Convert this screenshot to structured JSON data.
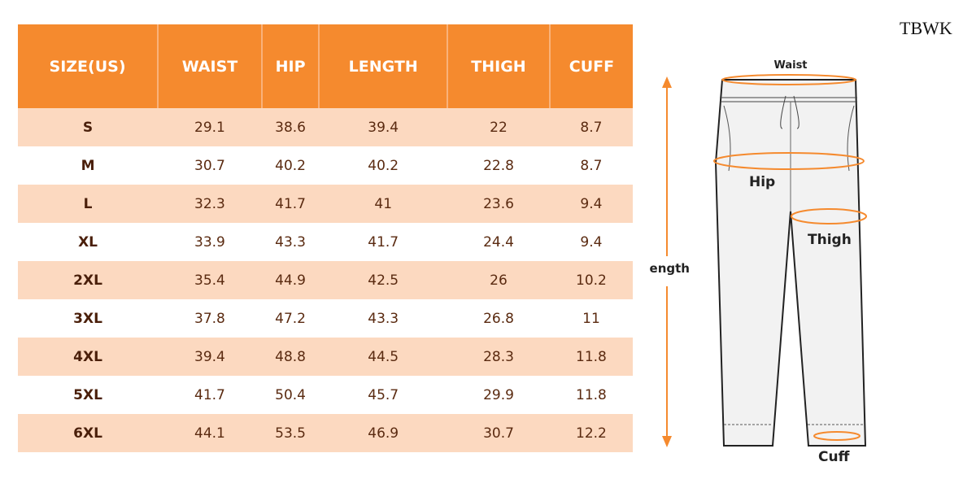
{
  "brand": "TBWK",
  "table": {
    "header": [
      "SIZE(US)",
      "WAIST",
      "HIP",
      "LENGTH",
      "THIGH",
      "CUFF"
    ],
    "rows": [
      [
        "S",
        "29.1",
        "38.6",
        "39.4",
        "22",
        "8.7"
      ],
      [
        "M",
        "30.7",
        "40.2",
        "40.2",
        "22.8",
        "8.7"
      ],
      [
        "L",
        "32.3",
        "41.7",
        "41",
        "23.6",
        "9.4"
      ],
      [
        "XL",
        "33.9",
        "43.3",
        "41.7",
        "24.4",
        "9.4"
      ],
      [
        "2XL",
        "35.4",
        "44.9",
        "42.5",
        "26",
        "10.2"
      ],
      [
        "3XL",
        "37.8",
        "47.2",
        "43.3",
        "26.8",
        "11"
      ],
      [
        "4XL",
        "39.4",
        "48.8",
        "44.5",
        "28.3",
        "11.8"
      ],
      [
        "5XL",
        "41.7",
        "50.4",
        "45.7",
        "29.9",
        "11.8"
      ],
      [
        "6XL",
        "44.1",
        "53.5",
        "46.9",
        "30.7",
        "12.2"
      ]
    ]
  },
  "diagram": {
    "waist": "Waist",
    "hip": "Hip",
    "thigh": "Thigh",
    "length": "ength",
    "cuff": "Cuff"
  }
}
